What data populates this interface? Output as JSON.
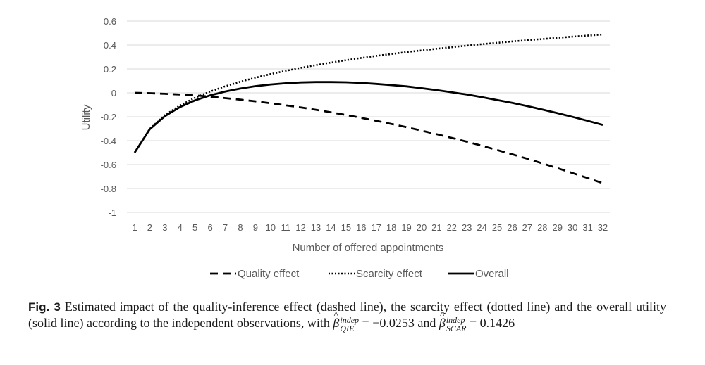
{
  "chart_data": {
    "type": "line",
    "title": "",
    "xlabel": "Number of offered appointments",
    "ylabel": "Utility",
    "ylim": [
      -1,
      0.6
    ],
    "yticks": [
      "0.6",
      "0.4",
      "0.2",
      "0",
      "-0.2",
      "-0.4",
      "-0.6",
      "-0.8",
      "-1"
    ],
    "ytick_values": [
      0.6,
      0.4,
      0.2,
      0,
      -0.2,
      -0.4,
      -0.6,
      -0.8,
      -1
    ],
    "x": [
      1,
      2,
      3,
      4,
      5,
      6,
      7,
      8,
      9,
      10,
      11,
      12,
      13,
      14,
      15,
      16,
      17,
      18,
      19,
      20,
      21,
      22,
      23,
      24,
      25,
      26,
      27,
      28,
      29,
      30,
      31,
      32
    ],
    "grid": "horizontal",
    "legend_position": "bottom",
    "series": [
      {
        "name": "Quality effect",
        "style": "dashed",
        "color": "#000000",
        "values": [
          0.0,
          -0.003,
          -0.008,
          -0.014,
          -0.022,
          -0.032,
          -0.044,
          -0.057,
          -0.071,
          -0.087,
          -0.104,
          -0.122,
          -0.142,
          -0.163,
          -0.185,
          -0.209,
          -0.234,
          -0.26,
          -0.287,
          -0.316,
          -0.346,
          -0.377,
          -0.409,
          -0.443,
          -0.478,
          -0.514,
          -0.551,
          -0.59,
          -0.63,
          -0.671,
          -0.713,
          -0.756
        ]
      },
      {
        "name": "Scarcity effect",
        "style": "dotted",
        "color": "#000000",
        "values": [
          -0.5,
          -0.302,
          -0.187,
          -0.105,
          -0.041,
          0.011,
          0.055,
          0.093,
          0.127,
          0.157,
          0.184,
          0.209,
          0.232,
          0.253,
          0.273,
          0.292,
          0.309,
          0.325,
          0.341,
          0.355,
          0.369,
          0.382,
          0.395,
          0.407,
          0.418,
          0.43,
          0.44,
          0.45,
          0.46,
          0.47,
          0.479,
          0.488
        ]
      },
      {
        "name": "Overall",
        "style": "solid",
        "color": "#000000",
        "values": [
          -0.5,
          -0.305,
          -0.195,
          -0.119,
          -0.063,
          -0.021,
          0.011,
          0.036,
          0.056,
          0.07,
          0.08,
          0.087,
          0.09,
          0.09,
          0.088,
          0.083,
          0.075,
          0.065,
          0.054,
          0.039,
          0.023,
          0.005,
          -0.014,
          -0.036,
          -0.06,
          -0.084,
          -0.111,
          -0.14,
          -0.17,
          -0.201,
          -0.234,
          -0.268
        ]
      }
    ]
  },
  "caption": {
    "label": "Fig. 3",
    "text": " Estimated impact of the quality-inference effect (dashed line), the scarcity effect (dotted line) and the overall utility (solid line) according to the independent observations, with ",
    "beta_symbol": "β",
    "qie_sup": "indep",
    "qie_sub": "QIE",
    "qie_value": " = −0.0253 and ",
    "scar_sup": "indep",
    "scar_sub": "SCAR",
    "scar_value": " = 0.1426"
  }
}
